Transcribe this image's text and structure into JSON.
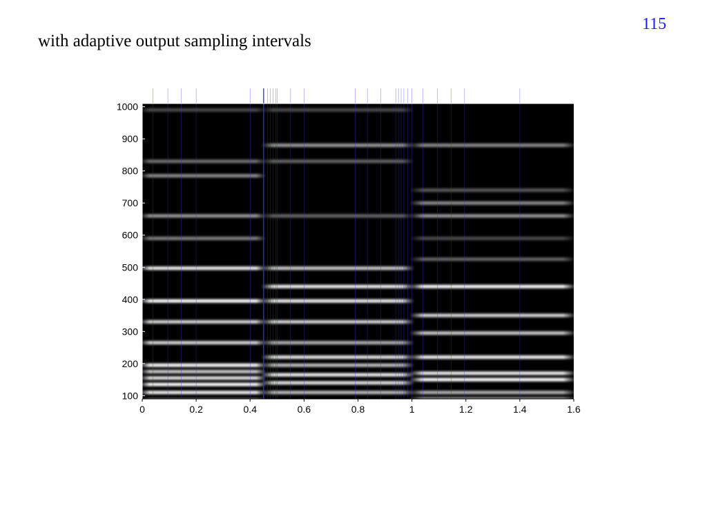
{
  "slide": {
    "page_number": "115",
    "title": "with adaptive output sampling intervals"
  },
  "colors": {
    "page_number": "#1a1aff",
    "background": "#000000",
    "harmonic_line": "#ffffff",
    "sampling_marker": "#3333cc"
  },
  "chart_data": {
    "type": "heatmap",
    "title": "",
    "xlabel": "",
    "ylabel": "",
    "xlim": [
      0,
      1.6
    ],
    "ylim": [
      90,
      1010
    ],
    "x_ticks": [
      0,
      0.2,
      0.4,
      0.6,
      0.8,
      1,
      1.2,
      1.4,
      1.6
    ],
    "x_tick_labels": [
      "0",
      "0.2",
      "0.4",
      "0.6",
      "0.8",
      "1",
      "1.2",
      "1.4",
      "1.6"
    ],
    "y_ticks": [
      100,
      200,
      300,
      400,
      500,
      600,
      700,
      800,
      900,
      1000
    ],
    "y_tick_labels": [
      "100",
      "200",
      "300",
      "400",
      "500",
      "600",
      "700",
      "800",
      "900",
      "1000"
    ],
    "sampling_instants": [
      0.04,
      0.095,
      0.145,
      0.2,
      0.4,
      0.45,
      0.465,
      0.475,
      0.485,
      0.495,
      0.5,
      0.55,
      0.6,
      0.79,
      0.835,
      0.885,
      0.94,
      0.95,
      0.96,
      0.97,
      0.985,
      1.0,
      1.04,
      1.095,
      1.145,
      1.195,
      1.4
    ],
    "highlighted_instant": 0.45,
    "segments": [
      {
        "x_range": [
          0,
          0.45
        ],
        "frequencies": [
          85,
          110,
          135,
          155,
          175,
          195,
          265,
          330,
          395,
          497,
          590,
          660,
          785,
          830,
          990
        ],
        "intensities": [
          0.9,
          0.95,
          1.0,
          0.9,
          0.8,
          1.0,
          0.85,
          0.85,
          1.0,
          0.95,
          0.5,
          0.6,
          0.55,
          0.45,
          0.3
        ]
      },
      {
        "x_range": [
          0.45,
          1.0
        ],
        "frequencies": [
          110,
          140,
          165,
          195,
          220,
          265,
          330,
          395,
          440,
          497,
          660,
          830,
          880,
          990
        ],
        "intensities": [
          0.75,
          0.9,
          0.95,
          0.75,
          0.9,
          0.7,
          0.85,
          0.95,
          0.95,
          0.8,
          0.4,
          0.4,
          0.6,
          0.3
        ]
      },
      {
        "x_range": [
          1.0,
          1.6
        ],
        "frequencies": [
          90,
          110,
          150,
          170,
          220,
          295,
          350,
          440,
          525,
          590,
          660,
          700,
          740,
          880
        ],
        "intensities": [
          0.6,
          0.7,
          1.0,
          0.95,
          0.95,
          0.8,
          0.85,
          1.0,
          0.4,
          0.3,
          0.6,
          0.55,
          0.35,
          0.55
        ]
      }
    ]
  }
}
